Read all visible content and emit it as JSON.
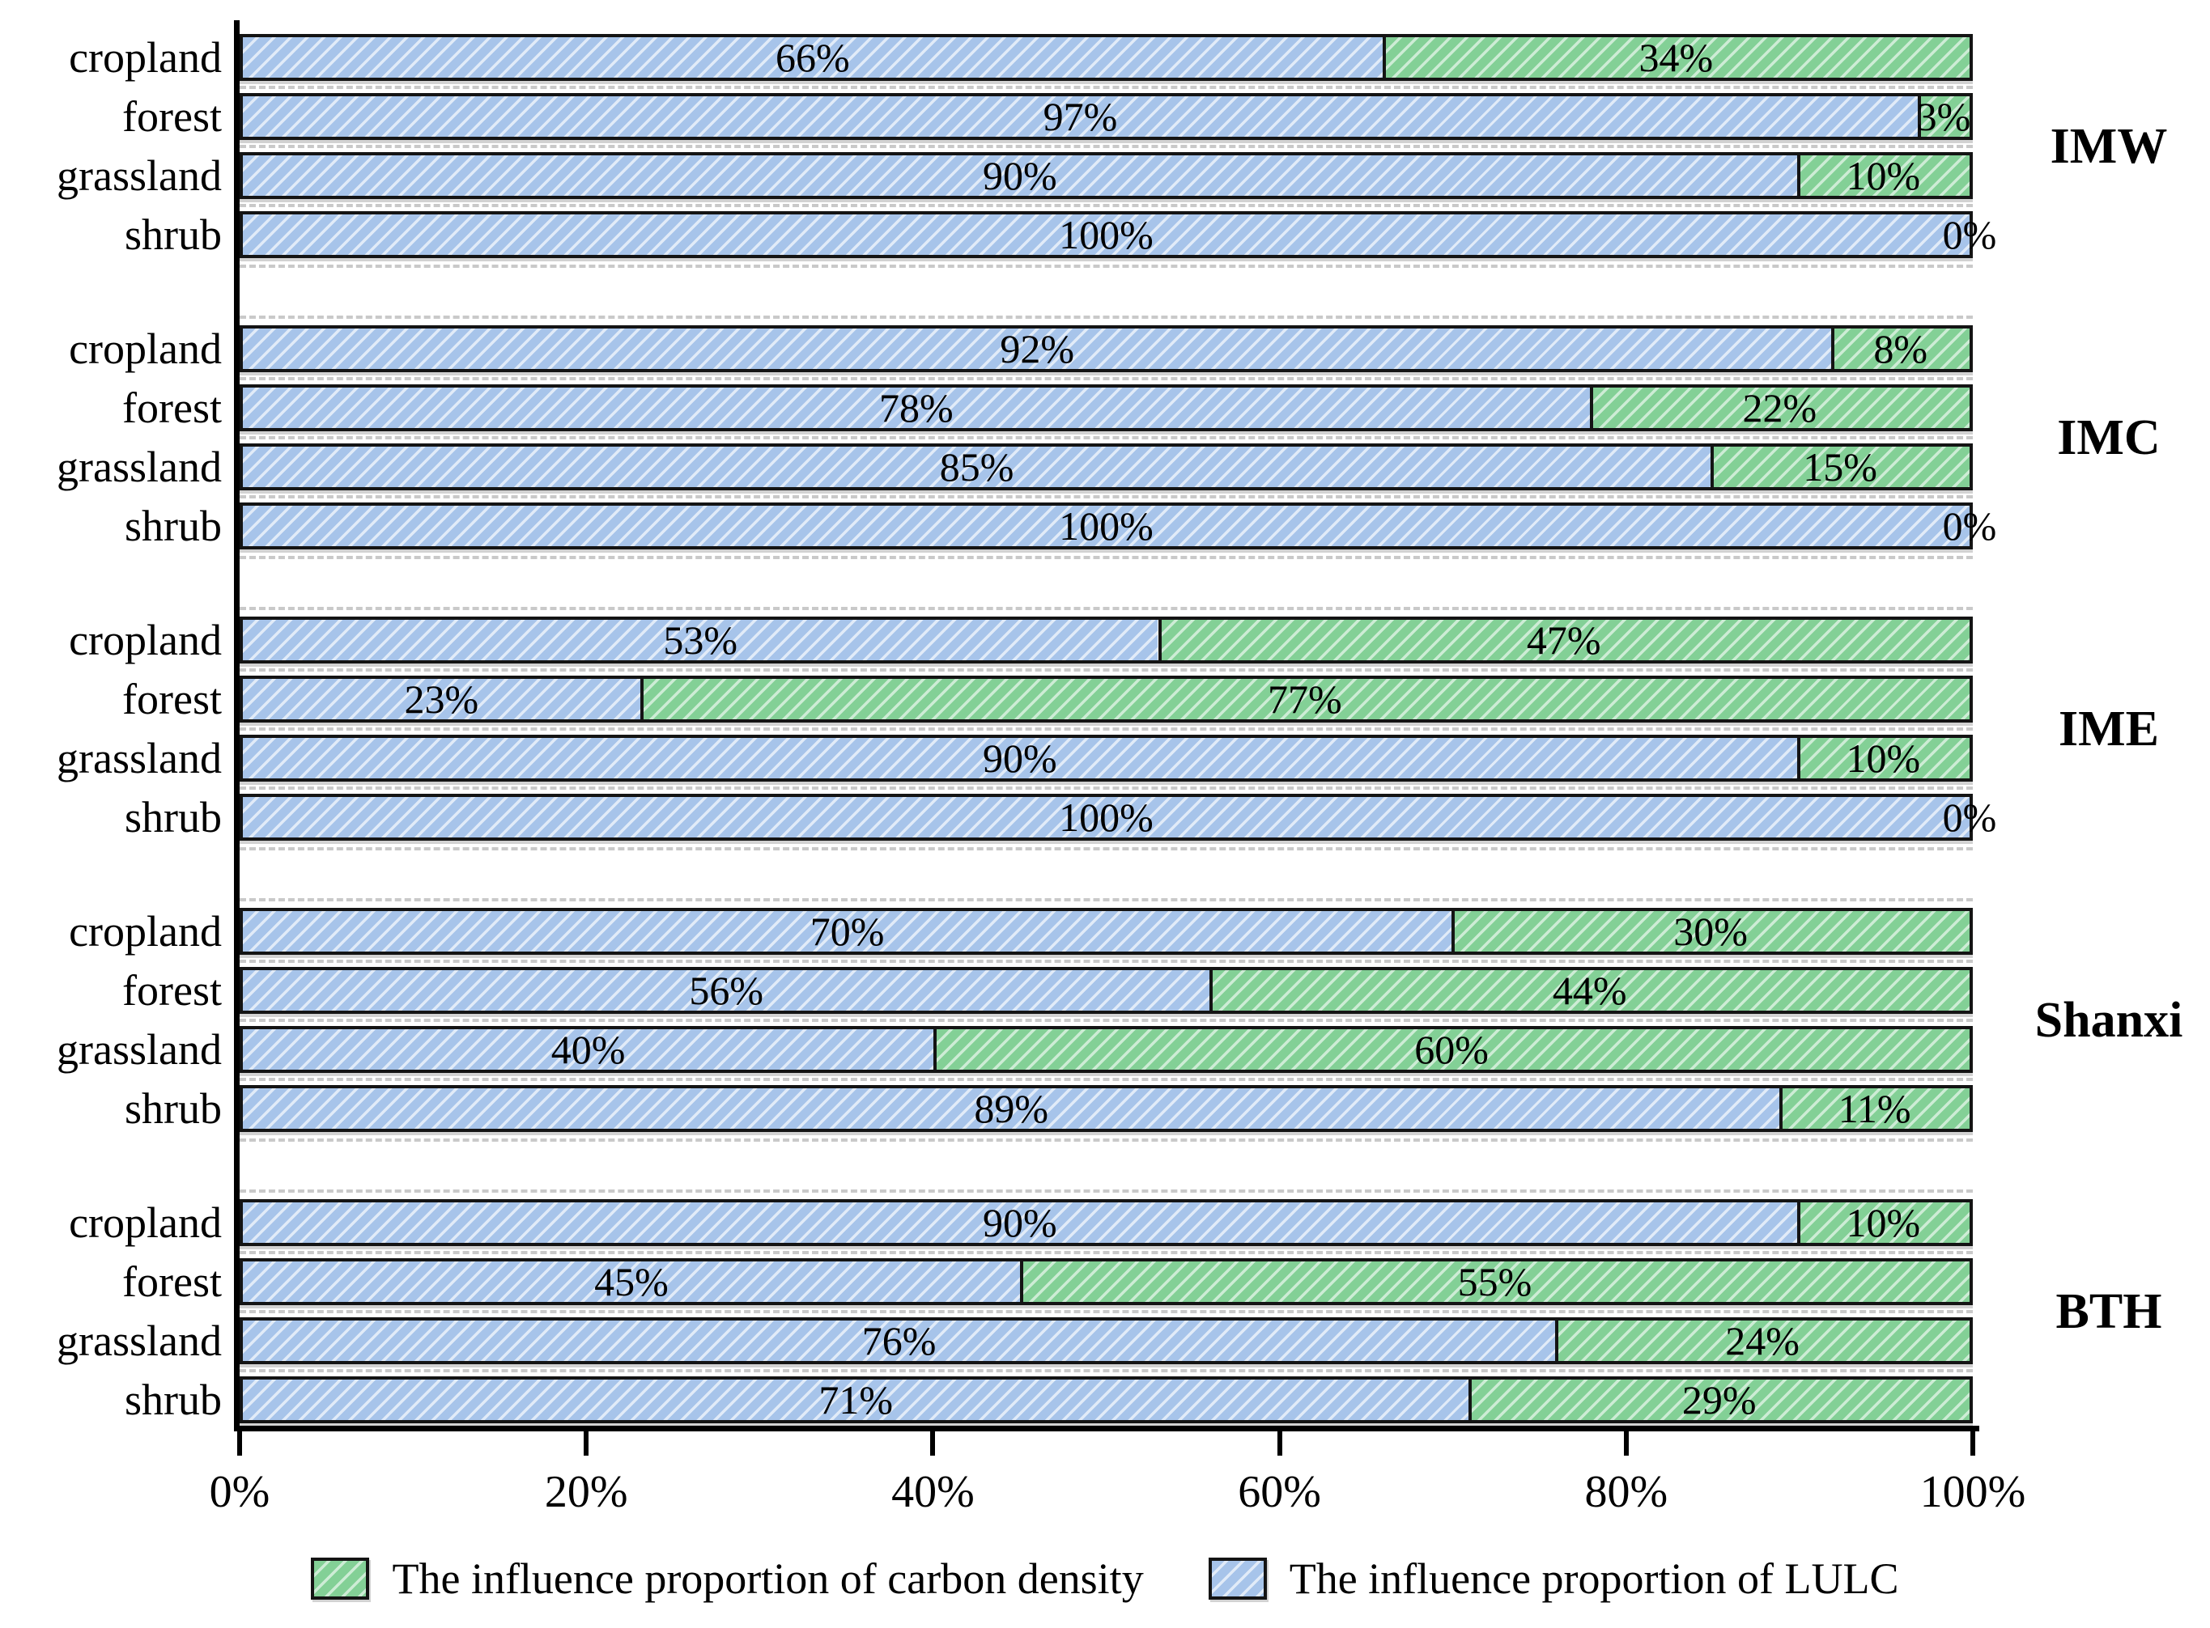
{
  "chart_data": {
    "type": "bar",
    "orientation": "horizontal-stacked",
    "unit": "%",
    "title": "",
    "xlabel": "",
    "ylabel": "",
    "x_axis": {
      "range": [
        0,
        100
      ],
      "tick_labels": [
        "0%",
        "20%",
        "40%",
        "60%",
        "80%",
        "100%"
      ],
      "grid": "dashed-horizontal-between-bars"
    },
    "categories": [
      "cropland",
      "forest",
      "grassland",
      "shrub"
    ],
    "series_names": {
      "lulc": "The influence proportion of LULC",
      "carbon": "The influence proportion of carbon density"
    },
    "groups": [
      {
        "name": "IMW",
        "rows": [
          {
            "category": "cropland",
            "lulc": 66,
            "carbon": 34
          },
          {
            "category": "forest",
            "lulc": 97,
            "carbon": 3
          },
          {
            "category": "grassland",
            "lulc": 90,
            "carbon": 10
          },
          {
            "category": "shrub",
            "lulc": 100,
            "carbon": 0
          }
        ]
      },
      {
        "name": "IMC",
        "rows": [
          {
            "category": "cropland",
            "lulc": 92,
            "carbon": 8
          },
          {
            "category": "forest",
            "lulc": 78,
            "carbon": 22
          },
          {
            "category": "grassland",
            "lulc": 85,
            "carbon": 15
          },
          {
            "category": "shrub",
            "lulc": 100,
            "carbon": 0
          }
        ]
      },
      {
        "name": "IME",
        "rows": [
          {
            "category": "cropland",
            "lulc": 53,
            "carbon": 47
          },
          {
            "category": "forest",
            "lulc": 23,
            "carbon": 77
          },
          {
            "category": "grassland",
            "lulc": 90,
            "carbon": 10
          },
          {
            "category": "shrub",
            "lulc": 100,
            "carbon": 0
          }
        ]
      },
      {
        "name": "Shanxi",
        "rows": [
          {
            "category": "cropland",
            "lulc": 70,
            "carbon": 30
          },
          {
            "category": "forest",
            "lulc": 56,
            "carbon": 44
          },
          {
            "category": "grassland",
            "lulc": 40,
            "carbon": 60
          },
          {
            "category": "shrub",
            "lulc": 89,
            "carbon": 11
          }
        ]
      },
      {
        "name": "BTH",
        "rows": [
          {
            "category": "cropland",
            "lulc": 90,
            "carbon": 10
          },
          {
            "category": "forest",
            "lulc": 45,
            "carbon": 55
          },
          {
            "category": "grassland",
            "lulc": 76,
            "carbon": 24
          },
          {
            "category": "shrub",
            "lulc": 71,
            "carbon": 29
          }
        ]
      }
    ],
    "legend": [
      {
        "swatch": "green-hatch",
        "label": "The influence proportion of carbon density"
      },
      {
        "swatch": "blue-hatch",
        "label": "The influence proportion of LULC"
      }
    ],
    "colors": {
      "lulc_fill": "#a7c4ea",
      "carbon_fill": "#83d096",
      "bar_border": "#141414",
      "gridline": "#c9c9c9",
      "axis": "#000000",
      "text": "#000000"
    }
  }
}
